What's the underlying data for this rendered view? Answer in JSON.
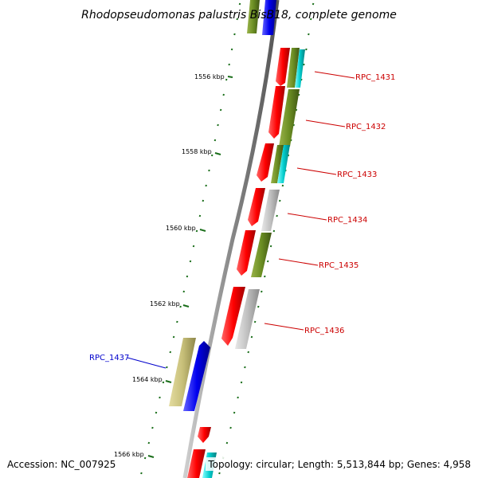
{
  "title": "Rhodopseudomonas palustris BisB18, complete genome",
  "footer": {
    "accession": "Accession: NC_007925",
    "topology": "Topology: circular; Length: 5,513,844 bp; Genes: 4,958"
  },
  "ticks": [
    {
      "label": "1556 kbp"
    },
    {
      "label": "1558 kbp"
    },
    {
      "label": "1560 kbp"
    },
    {
      "label": "1562 kbp"
    },
    {
      "label": "1564 kbp"
    },
    {
      "label": "1566 kbp"
    }
  ],
  "gene_labels": [
    {
      "name": "RPC_1431",
      "color": "#cc0000"
    },
    {
      "name": "RPC_1432",
      "color": "#cc0000"
    },
    {
      "name": "RPC_1433",
      "color": "#cc0000"
    },
    {
      "name": "RPC_1434",
      "color": "#cc0000"
    },
    {
      "name": "RPC_1435",
      "color": "#cc0000"
    },
    {
      "name": "RPC_1436",
      "color": "#cc0000"
    },
    {
      "name": "RPC_1437",
      "color": "#0000cc"
    }
  ],
  "colors": {
    "red": "#ff0000",
    "olive": "#6b8e23",
    "cyan": "#00cccc",
    "gray": "#b8b8b8",
    "khaki": "#c8c07a",
    "blue": "#0000ee",
    "backbone": "#888888",
    "tick": "#1a6e1a"
  }
}
